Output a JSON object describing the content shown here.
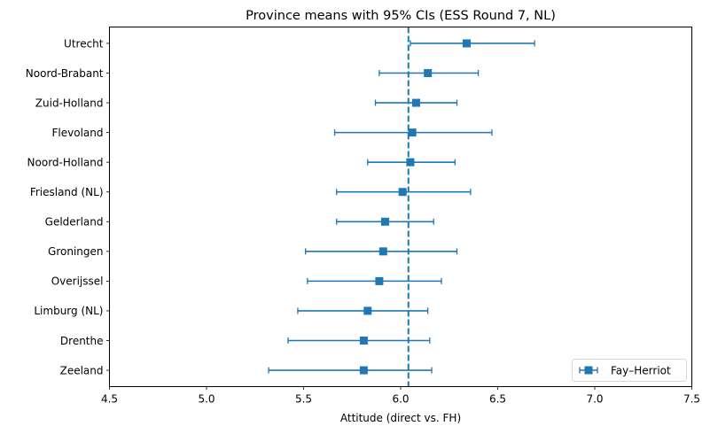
{
  "chart_data": {
    "type": "errorbar",
    "title": "Province means with 95% CIs (ESS Round 7, NL)",
    "xlabel": "Attitude (direct vs. FH)",
    "ylabel": "",
    "xlim": [
      4.5,
      7.5
    ],
    "xticks": [
      "4.5",
      "5.0",
      "5.5",
      "6.0",
      "6.5",
      "7.0",
      "7.5"
    ],
    "xtick_values": [
      4.5,
      5.0,
      5.5,
      6.0,
      6.5,
      7.0,
      7.5
    ],
    "grid": false,
    "reference_line": {
      "x": 6.04,
      "style": "dashed"
    },
    "legend": {
      "placement": "lower-right",
      "entries": [
        "Fay–Herriot"
      ]
    },
    "series": [
      {
        "name": "Fay–Herriot",
        "color": "#1f77b4",
        "marker": "square",
        "points": [
          {
            "category": "Utrecht",
            "mean": 6.34,
            "lower": 6.05,
            "upper": 6.69
          },
          {
            "category": "Noord-Brabant",
            "mean": 6.14,
            "lower": 5.89,
            "upper": 6.4
          },
          {
            "category": "Zuid-Holland",
            "mean": 6.08,
            "lower": 5.87,
            "upper": 6.29
          },
          {
            "category": "Flevoland",
            "mean": 6.06,
            "lower": 5.66,
            "upper": 6.47
          },
          {
            "category": "Noord-Holland",
            "mean": 6.05,
            "lower": 5.83,
            "upper": 6.28
          },
          {
            "category": "Friesland (NL)",
            "mean": 6.01,
            "lower": 5.67,
            "upper": 6.36
          },
          {
            "category": "Gelderland",
            "mean": 5.92,
            "lower": 5.67,
            "upper": 6.17
          },
          {
            "category": "Groningen",
            "mean": 5.91,
            "lower": 5.51,
            "upper": 6.29
          },
          {
            "category": "Overijssel",
            "mean": 5.89,
            "lower": 5.52,
            "upper": 6.21
          },
          {
            "category": "Limburg (NL)",
            "mean": 5.83,
            "lower": 5.47,
            "upper": 6.14
          },
          {
            "category": "Drenthe",
            "mean": 5.81,
            "lower": 5.42,
            "upper": 6.15
          },
          {
            "category": "Zeeland",
            "mean": 5.81,
            "lower": 5.32,
            "upper": 6.16
          }
        ]
      }
    ]
  }
}
